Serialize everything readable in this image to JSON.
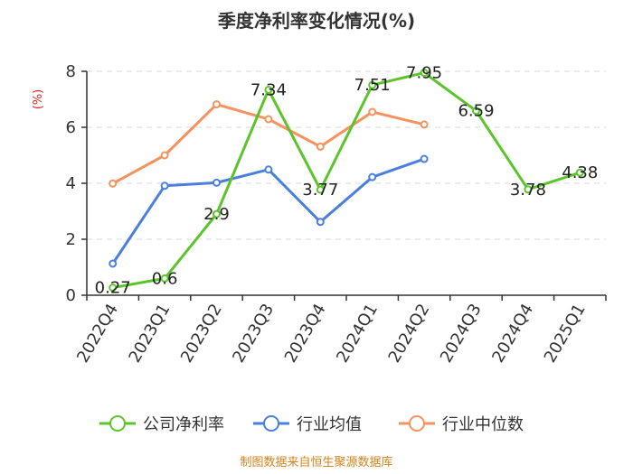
{
  "chart_data": {
    "type": "line",
    "title": "季度净利率变化情况(%)",
    "unit_label": "(%)",
    "categories": [
      "2022Q4",
      "2023Q1",
      "2023Q2",
      "2023Q3",
      "2023Q4",
      "2024Q1",
      "2024Q2",
      "2024Q3",
      "2024Q4",
      "2025Q1"
    ],
    "ylim": [
      0,
      8
    ],
    "yticks": [
      0,
      2,
      4,
      6,
      8
    ],
    "grid": true,
    "legend_position": "bottom",
    "series": [
      {
        "name": "公司净利率",
        "color": "#5cc42b",
        "values": [
          0.27,
          0.6,
          2.9,
          7.34,
          3.77,
          7.51,
          7.95,
          6.59,
          3.78,
          4.38
        ],
        "labels": [
          "0.27",
          "0.6",
          "2.9",
          "7.34",
          "3.77",
          "7.51",
          "7.95",
          "6.59",
          "3.78",
          "4.38"
        ],
        "show_labels": true
      },
      {
        "name": "行业均值",
        "color": "#4a7fe0",
        "values": [
          1.13,
          3.91,
          4.02,
          4.49,
          2.62,
          4.22,
          4.87,
          null,
          null,
          null
        ],
        "show_labels": false
      },
      {
        "name": "行业中位数",
        "color": "#f6925e",
        "values": [
          3.99,
          5.0,
          6.82,
          6.29,
          5.31,
          6.55,
          6.1,
          null,
          null,
          null
        ],
        "show_labels": false
      }
    ]
  },
  "footer": {
    "source": "制图数据来自恒生聚源数据库"
  }
}
